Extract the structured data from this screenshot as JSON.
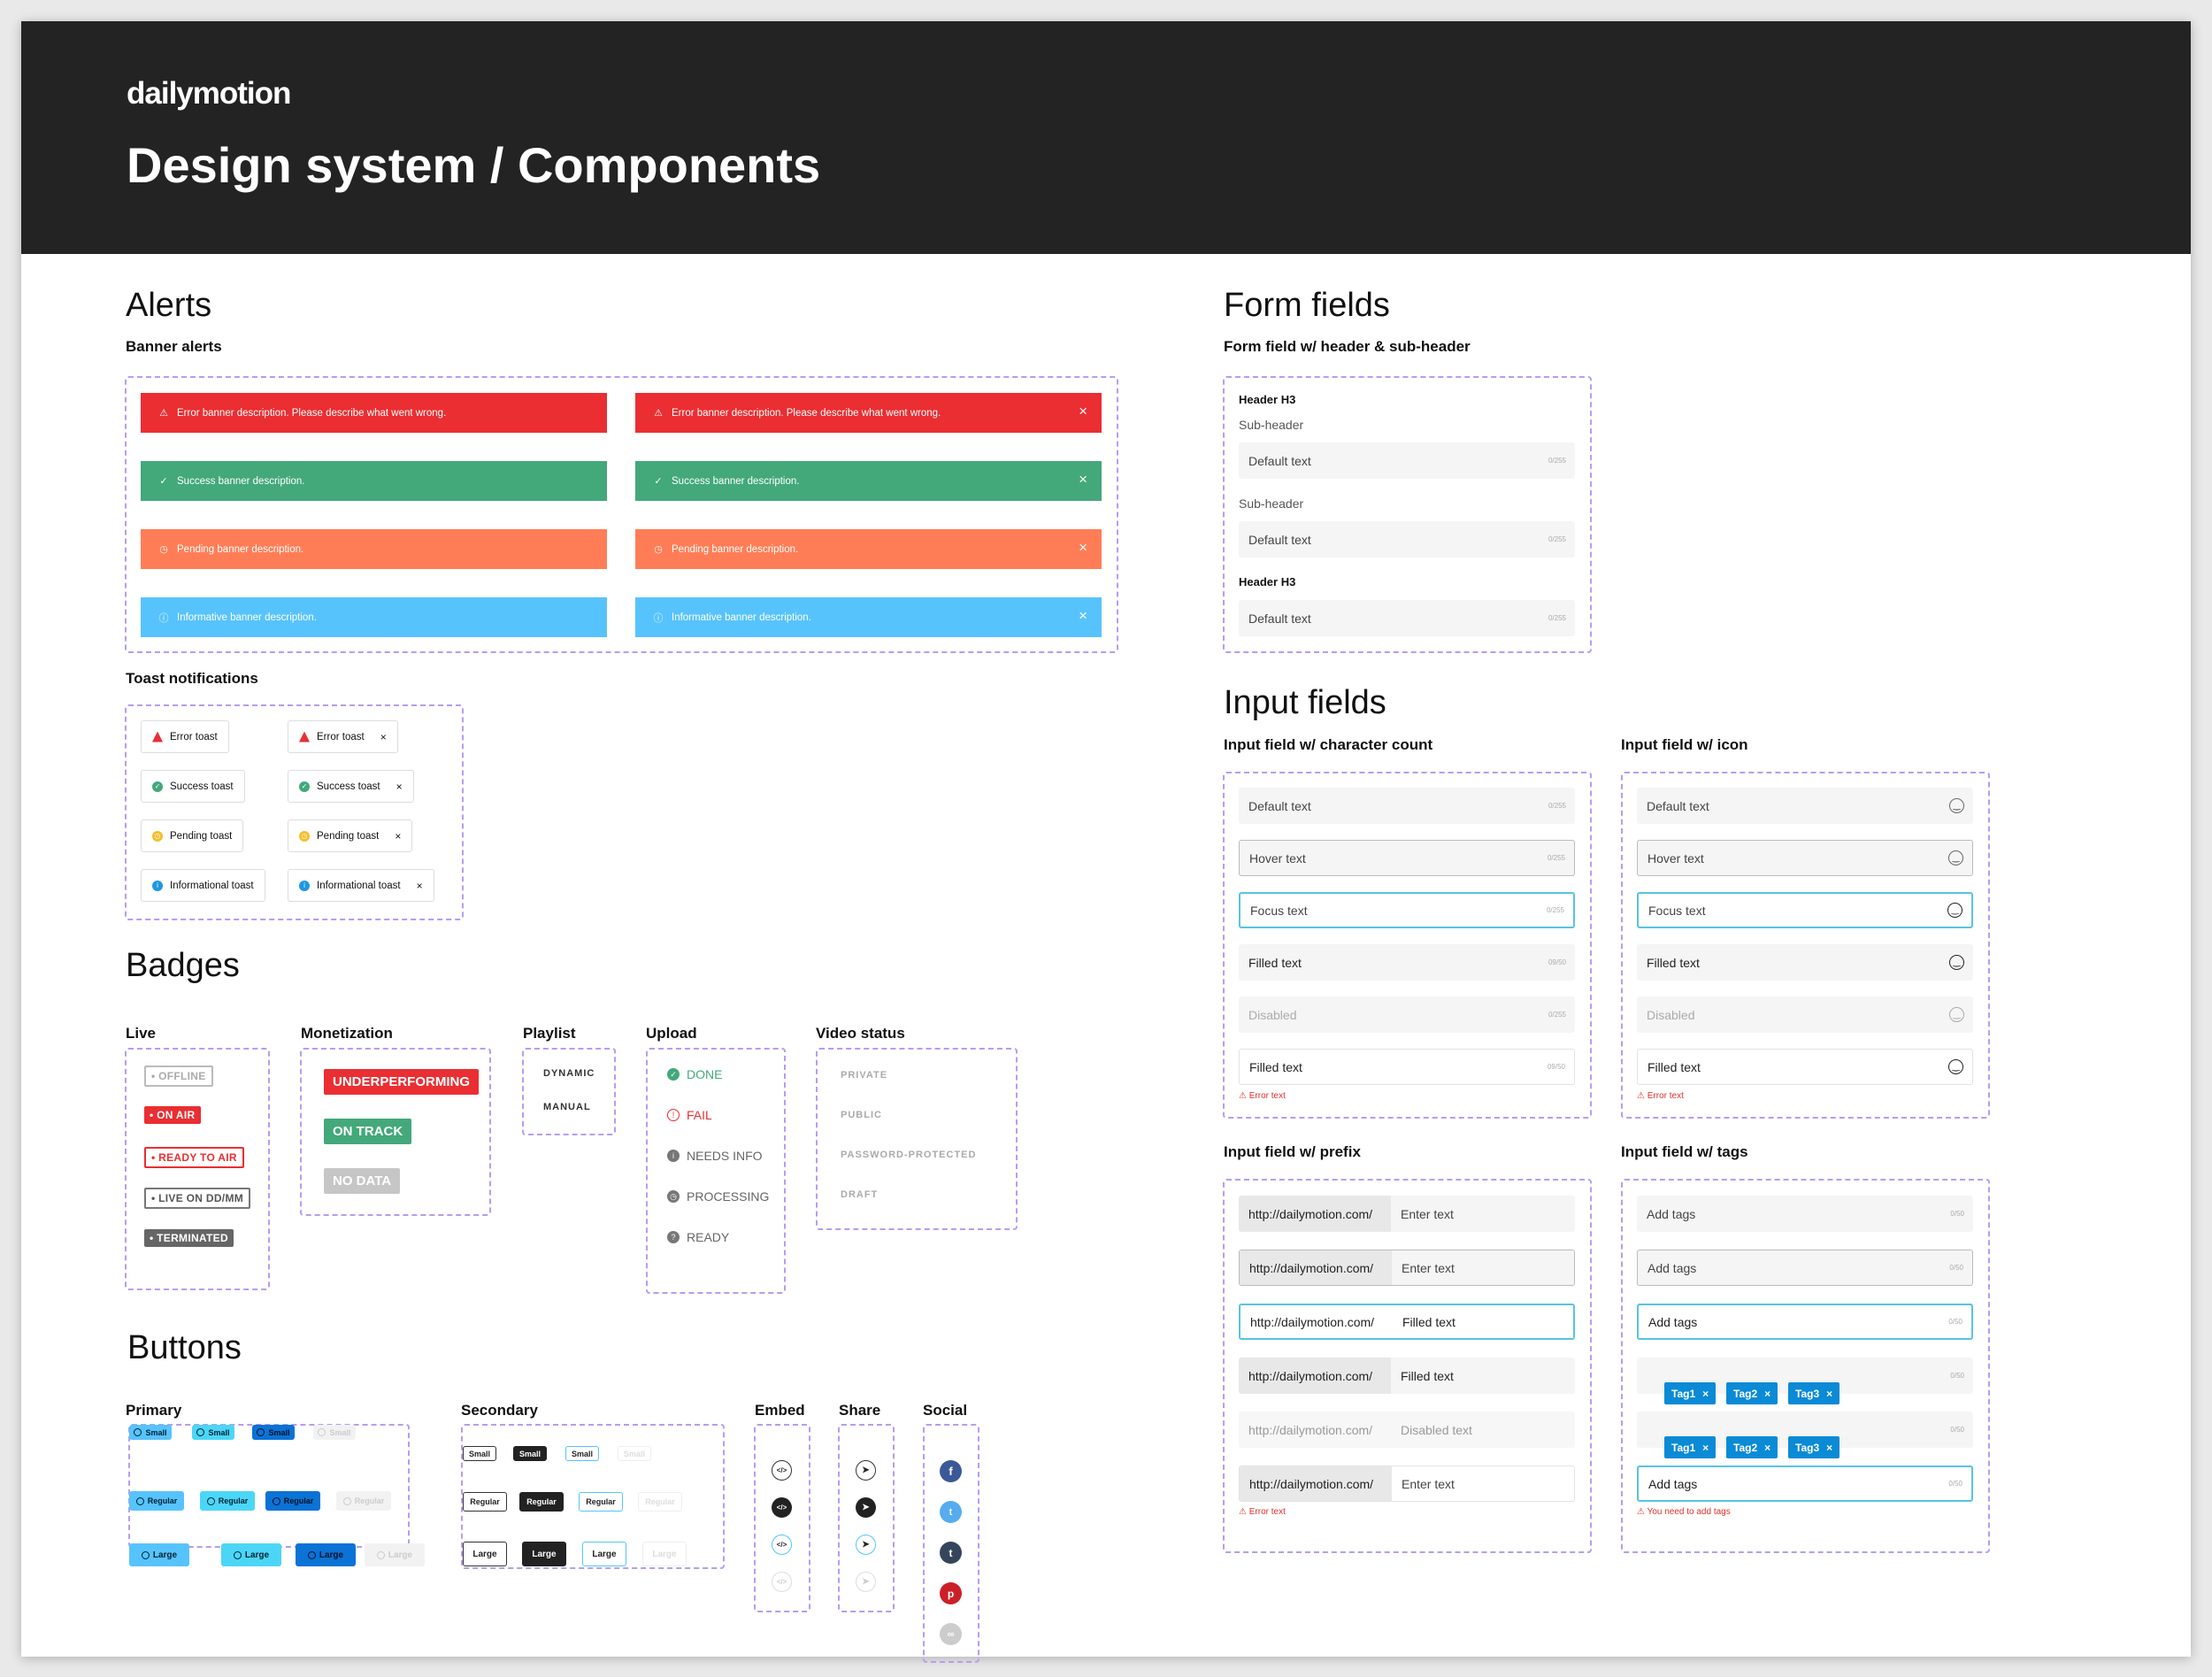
{
  "header": {
    "logo": "dailymotion",
    "title": "Design system / Components"
  },
  "alerts": {
    "title": "Alerts",
    "banner_title": "Banner alerts",
    "banners": [
      {
        "type": "error",
        "text": "Error banner description. Please describe what went wrong."
      },
      {
        "type": "success",
        "text": "Success banner description."
      },
      {
        "type": "pending",
        "text": "Pending banner description."
      },
      {
        "type": "info",
        "text": "Informative banner description."
      }
    ],
    "toast_title": "Toast notifications",
    "toasts": [
      {
        "type": "error",
        "text": "Error toast"
      },
      {
        "type": "success",
        "text": "Success toast"
      },
      {
        "type": "pending",
        "text": "Pending toast"
      },
      {
        "type": "info",
        "text": "Informational toast"
      }
    ],
    "close_glyph": "×"
  },
  "badges": {
    "title": "Badges",
    "live": {
      "title": "Live",
      "items": [
        "• OFFLINE",
        "• ON AIR",
        "• READY TO AIR",
        "• LIVE ON DD/MM",
        "• TERMINATED"
      ]
    },
    "monetization": {
      "title": "Monetization",
      "items": [
        "UNDERPERFORMING",
        "ON TRACK",
        "NO DATA"
      ]
    },
    "playlist": {
      "title": "Playlist",
      "items": [
        "DYNAMIC",
        "MANUAL"
      ]
    },
    "upload": {
      "title": "Upload",
      "items": [
        "DONE",
        "FAIL",
        "NEEDS INFO",
        "PROCESSING",
        "READY"
      ]
    },
    "video_status": {
      "title": "Video status",
      "items": [
        "PRIVATE",
        "PUBLIC",
        "PASSWORD-PROTECTED",
        "DRAFT"
      ]
    }
  },
  "buttons": {
    "title": "Buttons",
    "primary": {
      "title": "Primary",
      "sizes": [
        "Small",
        "Regular",
        "Large"
      ]
    },
    "secondary": {
      "title": "Secondary",
      "sizes": [
        "Small",
        "Regular",
        "Large"
      ]
    },
    "embed": {
      "title": "Embed"
    },
    "share": {
      "title": "Share"
    },
    "social": {
      "title": "Social"
    }
  },
  "form_fields": {
    "title": "Form fields",
    "subtitle": "Form field w/ header & sub-header",
    "header_h3": "Header H3",
    "sub_header": "Sub-header",
    "default_text": "Default text",
    "count": "0/255"
  },
  "input_fields": {
    "title": "Input fields",
    "char_count": {
      "title": "Input field w/ character count",
      "rows": [
        {
          "text": "Default text",
          "count": "0/255"
        },
        {
          "text": "Hover text",
          "count": "0/255"
        },
        {
          "text": "Focus text",
          "count": "0/255"
        },
        {
          "text": "Filled text",
          "count": "09/50"
        },
        {
          "text": "Disabled",
          "count": "0/255"
        },
        {
          "text": "Filled text",
          "count": "09/50"
        }
      ],
      "error": "Error text"
    },
    "icon": {
      "title": "Input field w/ icon",
      "rows": [
        "Default text",
        "Hover text",
        "Focus text",
        "Filled text",
        "Disabled",
        "Filled text"
      ],
      "error": "Error text"
    },
    "prefix": {
      "title": "Input field w/ prefix",
      "prefix": "http://dailymotion.com/",
      "rows": [
        "Enter text",
        "Enter text",
        "Filled text",
        "Filled text",
        "Disabled text",
        "Enter text"
      ],
      "error": "Error text"
    },
    "tags": {
      "title": "Input field w/ tags",
      "placeholder": "Add tags",
      "count": "0/50",
      "tags": [
        "Tag1",
        "Tag2",
        "Tag3"
      ],
      "error": "You need to add tags"
    }
  },
  "colors": {
    "error": "#ea2e32",
    "success": "#43a87a",
    "pending": "#ff7d56",
    "info": "#57c3fd",
    "accent_blue": "#0b8ad6",
    "focus": "#5bc2e3"
  }
}
